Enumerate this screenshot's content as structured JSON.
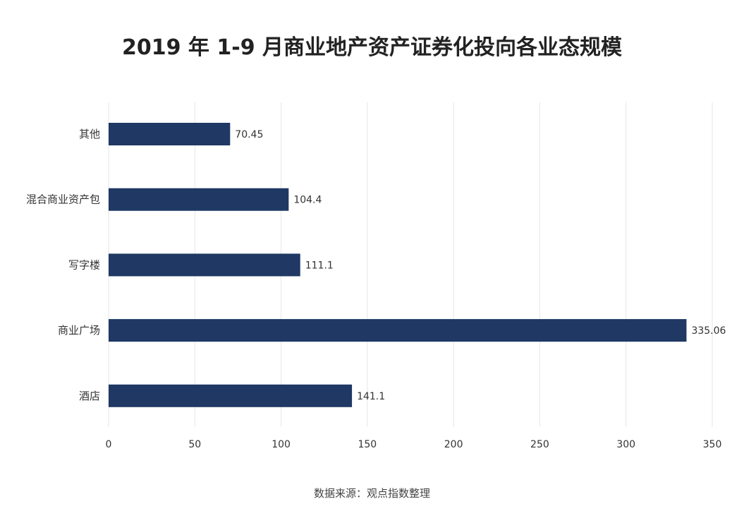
{
  "chart_data": {
    "type": "bar",
    "orientation": "horizontal",
    "title": "2019 年 1-9 月商业地产资产证券化投向各业态规模",
    "categories": [
      "其他",
      "混合商业资产包",
      "写字楼",
      "商业广场",
      "酒店"
    ],
    "values": [
      70.45,
      104.4,
      111.1,
      335.06,
      141.1
    ],
    "value_labels": [
      "70.45",
      "104.4",
      "111.1",
      "335.06",
      "141.1"
    ],
    "xlim": [
      0,
      350
    ],
    "xticks": [
      0,
      50,
      100,
      150,
      200,
      250,
      300,
      350
    ],
    "grid": true,
    "bar_color": "#1f3864",
    "grid_color": "#e6e6e6",
    "source": "数据来源：观点指数整理"
  }
}
